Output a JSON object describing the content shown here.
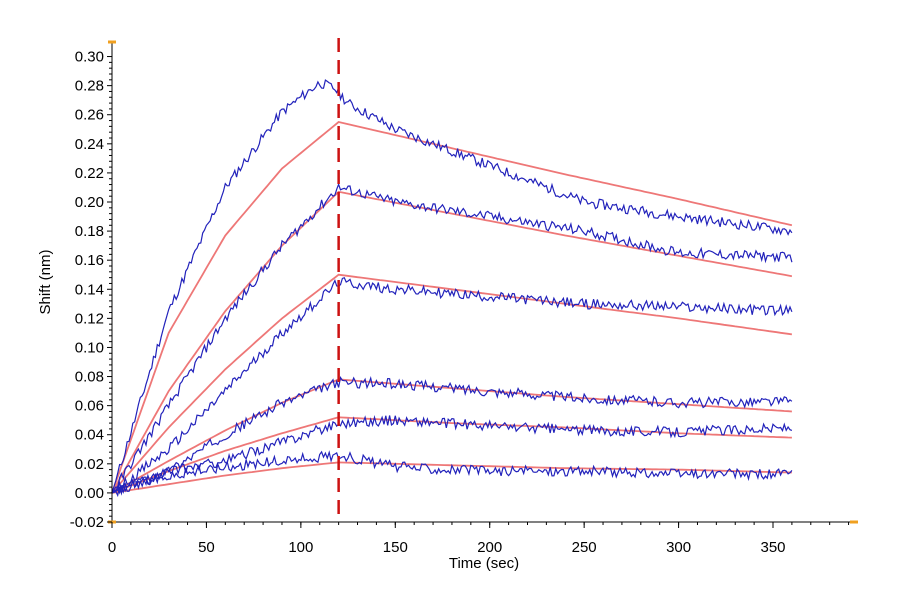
{
  "chart_data": {
    "type": "line",
    "xlabel": "Time (sec)",
    "ylabel": "Shift (nm)",
    "xlim": [
      0,
      395
    ],
    "ylim": [
      -0.02,
      0.31
    ],
    "x_ticks": [
      0,
      50,
      100,
      150,
      200,
      250,
      300,
      350
    ],
    "x_tick_labels": [
      "0",
      "50",
      "100",
      "150",
      "200",
      "250",
      "300",
      "350"
    ],
    "y_ticks": [
      -0.02,
      0.0,
      0.02,
      0.04,
      0.06,
      0.08,
      0.1,
      0.12,
      0.14,
      0.16,
      0.18,
      0.2,
      0.22,
      0.24,
      0.26,
      0.28,
      0.3
    ],
    "y_tick_labels": [
      "-0.02",
      "0.00",
      "0.02",
      "0.04",
      "0.06",
      "0.08",
      "0.10",
      "0.12",
      "0.14",
      "0.16",
      "0.18",
      "0.20",
      "0.22",
      "0.24",
      "0.26",
      "0.28",
      "0.30"
    ],
    "association_end_x": 120,
    "end_x": 360,
    "grid": false,
    "legend": "none",
    "colors": {
      "measured": "#2222bb",
      "fit": "#ee7777",
      "marker": "#cc1111",
      "axis_accent": "#f0a020"
    },
    "series": [
      {
        "kind": "fit",
        "x": [
          0,
          30,
          60,
          90,
          120,
          180,
          240,
          300,
          360
        ],
        "y": [
          0.0,
          0.11,
          0.177,
          0.223,
          0.255,
          0.237,
          0.219,
          0.202,
          0.184
        ]
      },
      {
        "kind": "measured",
        "x": [
          0,
          30,
          60,
          90,
          110,
          118,
          125,
          150,
          200,
          250,
          300,
          360
        ],
        "y": [
          0.0,
          0.125,
          0.21,
          0.262,
          0.282,
          0.278,
          0.268,
          0.25,
          0.225,
          0.2,
          0.19,
          0.18
        ]
      },
      {
        "kind": "fit",
        "x": [
          0,
          30,
          60,
          90,
          120,
          180,
          240,
          300,
          360
        ],
        "y": [
          0.0,
          0.07,
          0.125,
          0.17,
          0.207,
          0.192,
          0.177,
          0.163,
          0.149
        ]
      },
      {
        "kind": "measured",
        "x": [
          0,
          30,
          60,
          90,
          120,
          150,
          200,
          250,
          300,
          360
        ],
        "y": [
          0.0,
          0.06,
          0.12,
          0.17,
          0.21,
          0.2,
          0.19,
          0.18,
          0.165,
          0.162
        ]
      },
      {
        "kind": "fit",
        "x": [
          0,
          30,
          60,
          90,
          120,
          180,
          240,
          300,
          360
        ],
        "y": [
          0.0,
          0.045,
          0.085,
          0.12,
          0.15,
          0.14,
          0.13,
          0.12,
          0.109
        ]
      },
      {
        "kind": "measured",
        "x": [
          0,
          30,
          60,
          90,
          120,
          150,
          200,
          250,
          300,
          360
        ],
        "y": [
          0.0,
          0.03,
          0.07,
          0.11,
          0.145,
          0.14,
          0.135,
          0.13,
          0.128,
          0.125
        ]
      },
      {
        "kind": "fit",
        "x": [
          0,
          30,
          60,
          90,
          120,
          180,
          240,
          300,
          360
        ],
        "y": [
          0.0,
          0.022,
          0.043,
          0.062,
          0.078,
          0.072,
          0.066,
          0.061,
          0.056
        ]
      },
      {
        "kind": "measured",
        "x": [
          0,
          30,
          60,
          90,
          120,
          150,
          200,
          250,
          300,
          360
        ],
        "y": [
          0.0,
          0.015,
          0.04,
          0.062,
          0.076,
          0.075,
          0.07,
          0.065,
          0.062,
          0.063
        ]
      },
      {
        "kind": "fit",
        "x": [
          0,
          30,
          60,
          90,
          120,
          180,
          240,
          300,
          360
        ],
        "y": [
          0.0,
          0.015,
          0.029,
          0.041,
          0.052,
          0.048,
          0.045,
          0.041,
          0.038
        ]
      },
      {
        "kind": "measured",
        "x": [
          0,
          30,
          60,
          90,
          120,
          150,
          200,
          250,
          300,
          360
        ],
        "y": [
          0.0,
          0.015,
          0.022,
          0.035,
          0.048,
          0.05,
          0.046,
          0.043,
          0.042,
          0.045
        ]
      },
      {
        "kind": "fit",
        "x": [
          0,
          30,
          60,
          90,
          120,
          180,
          240,
          300,
          360
        ],
        "y": [
          0.0,
          0.006,
          0.012,
          0.017,
          0.021,
          0.019,
          0.017,
          0.016,
          0.014
        ]
      },
      {
        "kind": "measured",
        "x": [
          0,
          30,
          60,
          90,
          120,
          150,
          200,
          250,
          300,
          360
        ],
        "y": [
          0.0,
          0.012,
          0.018,
          0.022,
          0.026,
          0.018,
          0.015,
          0.015,
          0.013,
          0.013
        ]
      }
    ]
  }
}
